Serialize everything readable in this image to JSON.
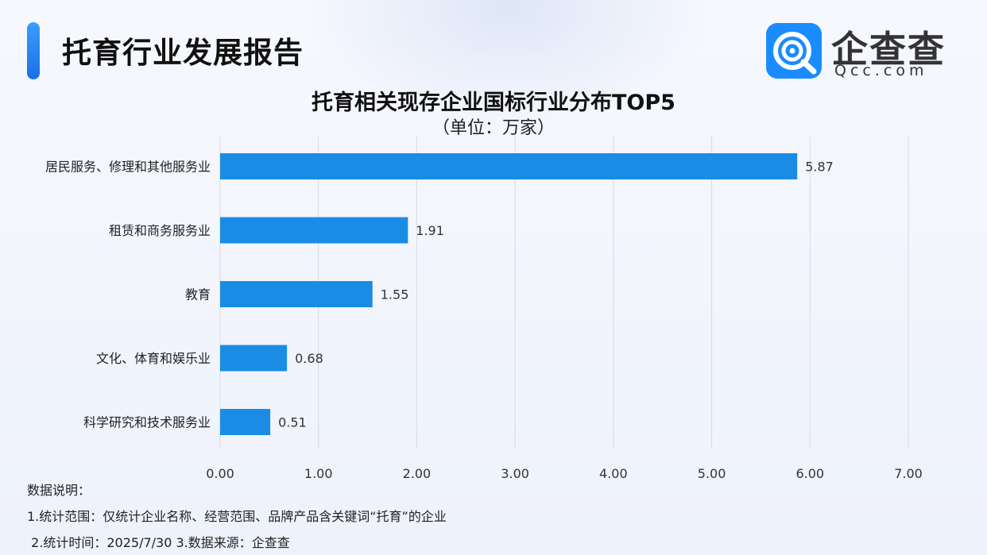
{
  "header": {
    "title": "托育行业发展报告",
    "logo_text": "企查查",
    "logo_domain": "Qcc.com"
  },
  "colors": {
    "accent": "#1a8cff",
    "bar": "#1a8ce6",
    "grid": "#d6dbe6"
  },
  "chart_data": {
    "type": "bar",
    "orientation": "horizontal",
    "title": "托育相关现存企业国标行业分布TOP5",
    "subtitle": "（单位：万家）",
    "categories": [
      "居民服务、修理和其他服务业",
      "租赁和商务服务业",
      "教育",
      "文化、体育和娱乐业",
      "科学研究和技术服务业"
    ],
    "values": [
      5.87,
      1.91,
      1.55,
      0.68,
      0.51
    ],
    "value_labels": [
      "5.87",
      "1.91",
      "1.55",
      "0.68",
      "0.51"
    ],
    "xlim": [
      0,
      7
    ],
    "x_ticks": [
      0,
      1,
      2,
      3,
      4,
      5,
      6,
      7
    ],
    "x_tick_labels": [
      "0.00",
      "1.00",
      "2.00",
      "3.00",
      "4.00",
      "5.00",
      "6.00",
      "7.00"
    ],
    "grid": true,
    "legend": "none"
  },
  "notes": {
    "heading": "数据说明：",
    "line1": "1.统计范围：仅统计企业名称、经营范围、品牌产品含关键词“托育”的企业",
    "line2": " 2.统计时间：2025/7/30 3.数据来源：企查查"
  }
}
